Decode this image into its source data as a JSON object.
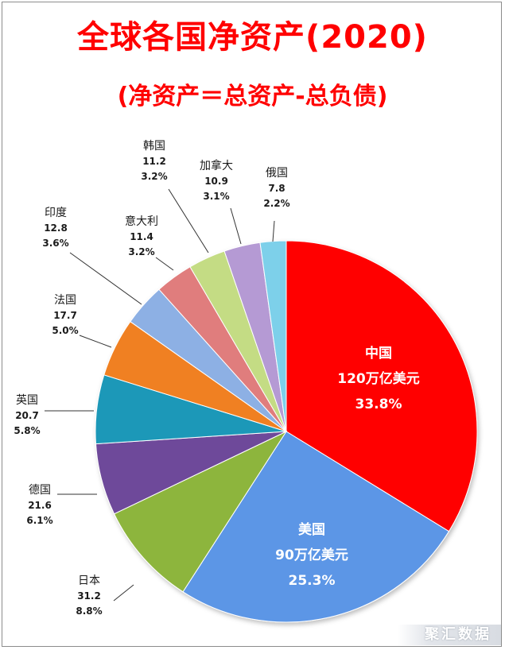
{
  "header": {
    "title": "全球各国净资产(2020)",
    "subtitle": "(净资产＝总资产-总负债)"
  },
  "watermark": "聚汇数据",
  "chart_data": {
    "type": "pie",
    "title": "全球各国净资产(2020)",
    "subtitle": "(净资产＝总资产-总负债)",
    "slices": [
      {
        "name": "中国",
        "value_text": "120万亿美元",
        "percent_text": "33.8%",
        "value": 120,
        "percent": 33.8,
        "color": "#ff0000",
        "label_position": "inside"
      },
      {
        "name": "美国",
        "value_text": "90万亿美元",
        "percent_text": "25.3%",
        "value": 90,
        "percent": 25.3,
        "color": "#5b96e6",
        "label_position": "inside"
      },
      {
        "name": "日本",
        "value_text": "31.2",
        "percent_text": "8.8%",
        "value": 31.2,
        "percent": 8.8,
        "color": "#8db53d",
        "label_position": "outside"
      },
      {
        "name": "德国",
        "value_text": "21.6",
        "percent_text": "6.1%",
        "value": 21.6,
        "percent": 6.1,
        "color": "#6e4a9a",
        "label_position": "outside"
      },
      {
        "name": "英国",
        "value_text": "20.7",
        "percent_text": "5.8%",
        "value": 20.7,
        "percent": 5.8,
        "color": "#1f98b8",
        "label_position": "outside"
      },
      {
        "name": "法国",
        "value_text": "17.7",
        "percent_text": "5.0%",
        "value": 17.7,
        "percent": 5.0,
        "color": "#f08020",
        "label_position": "outside"
      },
      {
        "name": "印度",
        "value_text": "12.8",
        "percent_text": "3.6%",
        "value": 12.8,
        "percent": 3.6,
        "color": "#8db0e4",
        "label_position": "outside"
      },
      {
        "name": "意大利",
        "value_text": "11.4",
        "percent_text": "3.2%",
        "value": 11.4,
        "percent": 3.2,
        "color": "#e07d7d",
        "label_position": "outside"
      },
      {
        "name": "韩国",
        "value_text": "11.2",
        "percent_text": "3.2%",
        "value": 11.2,
        "percent": 3.2,
        "color": "#c4dc84",
        "label_position": "outside"
      },
      {
        "name": "加拿大",
        "value_text": "10.9",
        "percent_text": "3.1%",
        "value": 10.9,
        "percent": 3.1,
        "color": "#b59ad4",
        "label_position": "outside"
      },
      {
        "name": "俄国",
        "value_text": "7.8",
        "percent_text": "2.2%",
        "value": 7.8,
        "percent": 2.2,
        "color": "#7dd0ea",
        "label_position": "outside"
      }
    ]
  }
}
